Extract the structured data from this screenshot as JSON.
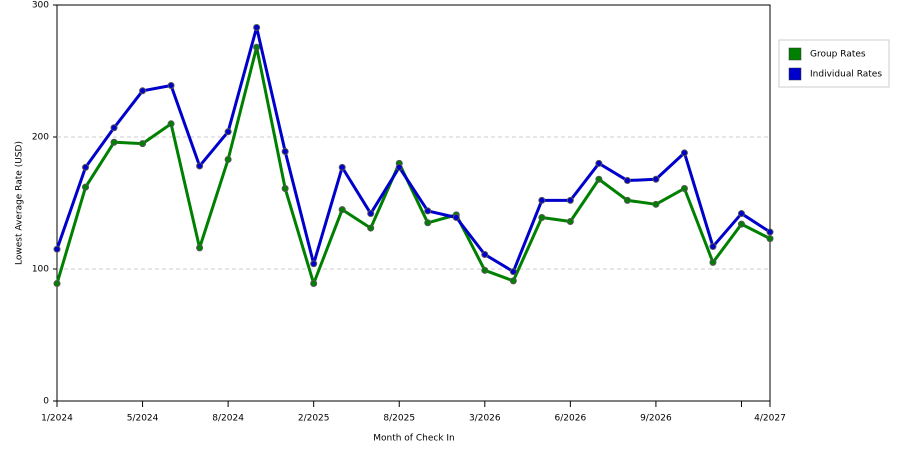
{
  "chart_data": {
    "type": "line",
    "x_label": "Month of Check In",
    "y_label": "Lowest Average Rate (USD)",
    "categories": [
      "1/2024",
      null,
      null,
      "5/2024",
      null,
      null,
      "8/2024",
      null,
      null,
      "2/2025",
      null,
      null,
      "8/2025",
      null,
      null,
      "3/2026",
      null,
      null,
      "6/2026",
      null,
      null,
      "9/2026",
      null,
      null,
      null,
      "4/2027"
    ],
    "series": [
      {
        "name": "Group Rates",
        "color": "#008000",
        "values": [
          89,
          162,
          196,
          195,
          210,
          116,
          183,
          268,
          161,
          89,
          145,
          131,
          180,
          135,
          141,
          99,
          91,
          139,
          136,
          168,
          152,
          149,
          161,
          105,
          134,
          123
        ]
      },
      {
        "name": "Individual Rates",
        "color": "#0000cc",
        "values": [
          115,
          177,
          207,
          235,
          239,
          178,
          204,
          283,
          189,
          104,
          177,
          142,
          177,
          144,
          139,
          111,
          98,
          152,
          152,
          180,
          167,
          168,
          188,
          117,
          142,
          128
        ]
      }
    ],
    "ylim": [
      0,
      300
    ],
    "yticks": [
      0,
      100,
      200,
      300
    ],
    "grid": true,
    "legend": "right"
  }
}
